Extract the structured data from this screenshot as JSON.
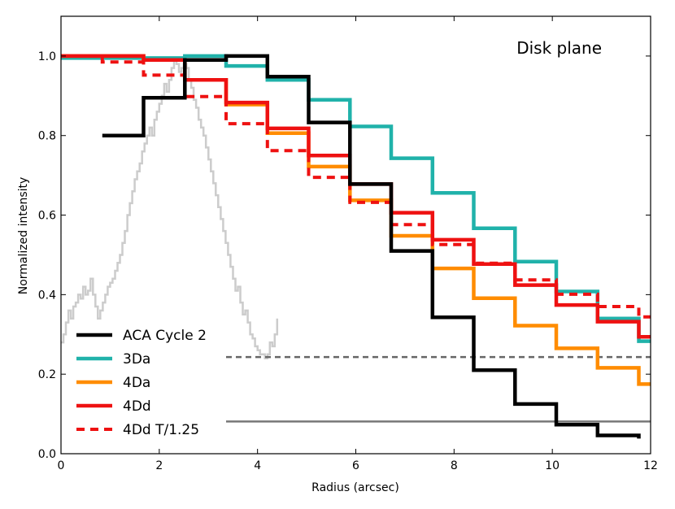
{
  "chart_data": {
    "type": "line",
    "title": "",
    "annotation": "Disk plane",
    "xlabel": "Radius (arcsec)",
    "ylabel": "Normalized intensity",
    "xlim": [
      0,
      12
    ],
    "ylim": [
      0,
      1.1
    ],
    "xticks": [
      0,
      2,
      4,
      6,
      8,
      10,
      12
    ],
    "yticks": [
      0.0,
      0.2,
      0.4,
      0.6,
      0.8,
      1.0
    ],
    "xtick_labels": [
      "0",
      "2",
      "4",
      "6",
      "8",
      "10",
      "12"
    ],
    "ytick_labels": [
      "0.0",
      "0.2",
      "0.4",
      "0.6",
      "0.8",
      "1.0"
    ],
    "legend_position": "lower-left",
    "series": [
      {
        "name": "ACA Cycle 2",
        "color": "#000000",
        "style": "solid",
        "step": true,
        "x": [
          0.84,
          1.68,
          2.52,
          3.36,
          4.2,
          5.04,
          5.88,
          6.72,
          7.56,
          8.4,
          9.24,
          10.08,
          10.92,
          11.76
        ],
        "y": [
          0.8,
          0.895,
          0.99,
          1.0,
          0.948,
          0.833,
          0.678,
          0.51,
          0.343,
          0.21,
          0.125,
          0.073,
          0.046,
          0.038
        ]
      },
      {
        "name": "3Da",
        "color": "#20b2aa",
        "style": "solid",
        "step": true,
        "x": [
          0,
          0.84,
          1.68,
          2.52,
          3.36,
          4.2,
          5.04,
          5.88,
          6.72,
          7.56,
          8.4,
          9.24,
          10.08,
          10.92,
          11.76,
          12.0
        ],
        "y": [
          0.995,
          0.995,
          0.995,
          1.0,
          0.975,
          0.94,
          0.89,
          0.823,
          0.743,
          0.656,
          0.567,
          0.483,
          0.408,
          0.34,
          0.283,
          0.283
        ]
      },
      {
        "name": "4Da",
        "color": "#ff8c00",
        "style": "solid",
        "step": true,
        "x": [
          0,
          0.84,
          1.68,
          2.52,
          3.36,
          4.2,
          5.04,
          5.88,
          6.72,
          7.56,
          8.4,
          9.24,
          10.08,
          10.92,
          11.76,
          12.0
        ],
        "y": [
          1.0,
          1.0,
          0.99,
          0.94,
          0.878,
          0.806,
          0.722,
          0.637,
          0.548,
          0.466,
          0.391,
          0.322,
          0.265,
          0.216,
          0.175,
          0.175
        ]
      },
      {
        "name": "4Dd",
        "color": "#ee1111",
        "style": "solid",
        "step": true,
        "x": [
          0,
          0.84,
          1.68,
          2.52,
          3.36,
          4.2,
          5.04,
          5.88,
          6.72,
          7.56,
          8.4,
          9.24,
          10.08,
          10.92,
          11.76,
          12.0
        ],
        "y": [
          1.0,
          1.0,
          0.99,
          0.94,
          0.883,
          0.818,
          0.75,
          0.678,
          0.606,
          0.538,
          0.477,
          0.424,
          0.374,
          0.332,
          0.294,
          0.294
        ]
      },
      {
        "name": "4Dd T/1.25",
        "color": "#ee1111",
        "style": "dashed",
        "step": true,
        "x": [
          0,
          0.84,
          1.68,
          2.52,
          3.36,
          4.2,
          5.04,
          5.88,
          6.72,
          7.56,
          8.4,
          9.24,
          10.08,
          10.92,
          11.76,
          12.0
        ],
        "y": [
          1.0,
          0.985,
          0.952,
          0.898,
          0.83,
          0.762,
          0.695,
          0.632,
          0.576,
          0.526,
          0.479,
          0.437,
          0.401,
          0.37,
          0.344,
          0.344
        ]
      }
    ],
    "background_profile": {
      "name": "beam profile (gray)",
      "color": "#cccccc",
      "x": [
        0.0,
        0.05,
        0.1,
        0.15,
        0.2,
        0.25,
        0.3,
        0.35,
        0.4,
        0.45,
        0.5,
        0.55,
        0.6,
        0.65,
        0.7,
        0.75,
        0.8,
        0.85,
        0.9,
        0.95,
        1.0,
        1.05,
        1.1,
        1.15,
        1.2,
        1.25,
        1.3,
        1.35,
        1.4,
        1.45,
        1.5,
        1.55,
        1.6,
        1.65,
        1.7,
        1.75,
        1.8,
        1.85,
        1.9,
        1.95,
        2.0,
        2.05,
        2.1,
        2.15,
        2.2,
        2.25,
        2.3,
        2.35,
        2.4,
        2.45,
        2.5,
        2.55,
        2.6,
        2.65,
        2.7,
        2.75,
        2.8,
        2.85,
        2.9,
        2.95,
        3.0,
        3.05,
        3.1,
        3.15,
        3.2,
        3.25,
        3.3,
        3.35,
        3.4,
        3.45,
        3.5,
        3.55,
        3.6,
        3.65,
        3.7,
        3.75,
        3.8,
        3.85,
        3.9,
        3.95,
        4.0,
        4.05,
        4.1,
        4.15,
        4.2,
        4.25,
        4.3,
        4.35,
        4.4
      ],
      "y": [
        0.28,
        0.3,
        0.33,
        0.36,
        0.34,
        0.37,
        0.38,
        0.4,
        0.39,
        0.42,
        0.4,
        0.41,
        0.44,
        0.4,
        0.37,
        0.34,
        0.36,
        0.38,
        0.4,
        0.42,
        0.43,
        0.44,
        0.46,
        0.48,
        0.5,
        0.53,
        0.56,
        0.6,
        0.63,
        0.66,
        0.69,
        0.71,
        0.73,
        0.76,
        0.78,
        0.8,
        0.82,
        0.8,
        0.84,
        0.86,
        0.88,
        0.9,
        0.93,
        0.91,
        0.94,
        0.97,
        0.99,
        0.98,
        0.96,
        0.97,
        0.98,
        0.97,
        0.94,
        0.92,
        0.89,
        0.87,
        0.84,
        0.82,
        0.8,
        0.77,
        0.74,
        0.71,
        0.68,
        0.65,
        0.62,
        0.59,
        0.56,
        0.53,
        0.5,
        0.47,
        0.44,
        0.41,
        0.42,
        0.38,
        0.35,
        0.36,
        0.33,
        0.3,
        0.29,
        0.27,
        0.26,
        0.25,
        0.25,
        0.24,
        0.25,
        0.28,
        0.27,
        0.3,
        0.34
      ]
    },
    "reference_lines": [
      {
        "y": 0.243,
        "x_start": 3.36,
        "color": "#666666",
        "style": "dashed"
      },
      {
        "y": 0.081,
        "x_start": 3.36,
        "color": "#777777",
        "style": "solid"
      }
    ]
  }
}
